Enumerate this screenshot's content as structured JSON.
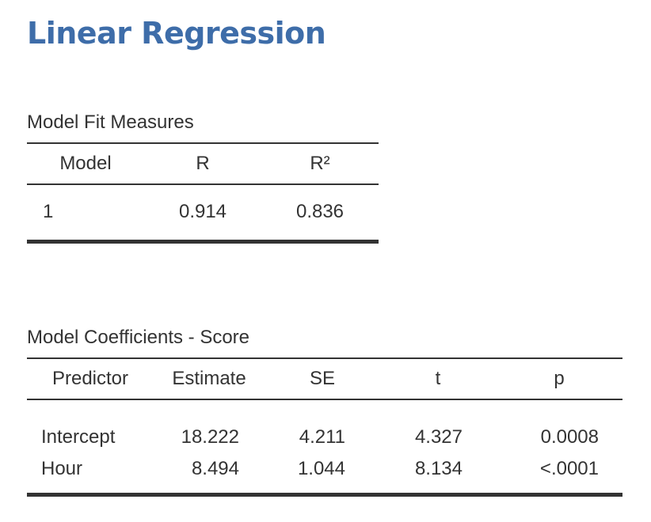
{
  "title": "Linear Regression",
  "model_fit": {
    "caption": "Model Fit Measures",
    "headers": [
      "Model",
      "R",
      "R²"
    ],
    "rows": [
      [
        "1",
        "0.914",
        "0.836"
      ]
    ]
  },
  "coefficients": {
    "caption": "Model Coefficients - Score",
    "headers": [
      "Predictor",
      "Estimate",
      "SE",
      "t",
      "p"
    ],
    "rows": [
      [
        "Intercept",
        "18.222",
        "4.211",
        "4.327",
        "0.0008"
      ],
      [
        "Hour",
        "8.494",
        "1.044",
        "8.134",
        "<.0001"
      ]
    ]
  },
  "colors": {
    "title": "#3e6da9",
    "text": "#333333",
    "rule": "#333333"
  }
}
